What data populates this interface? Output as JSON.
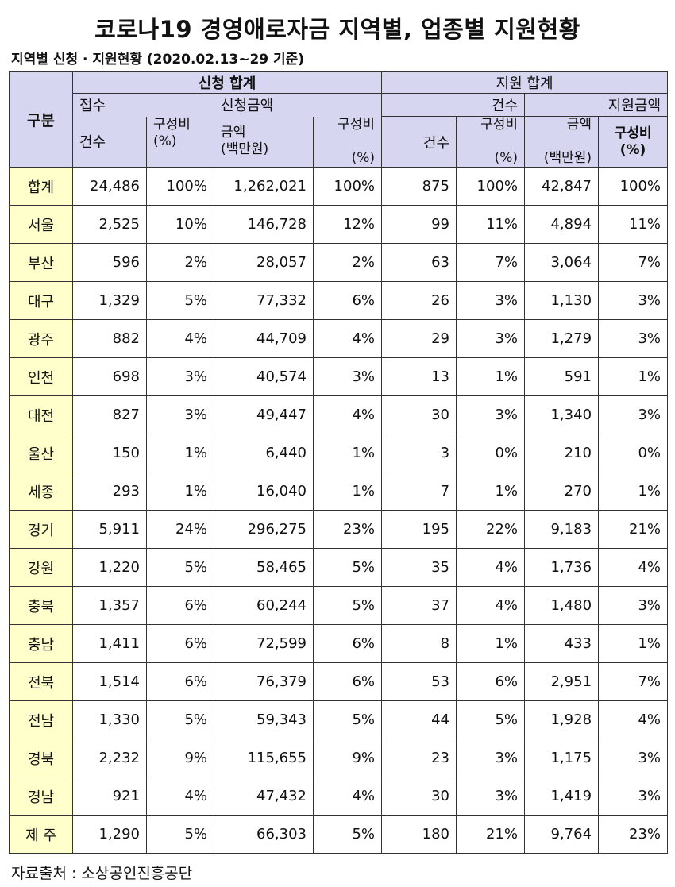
{
  "title": "코로나19 경영애로자금 지역별, 업종별 지원현황",
  "subtitle": "지역별 신청 · 지원현황 (2020.02.13~29 기준)",
  "table": {
    "gubun": "구분",
    "apply_total": "신청 합계",
    "support_total": "지원 합계",
    "reception": "접수",
    "apply_amount": "신청금액",
    "support_count_group": "건수",
    "support_amount_group": "지원금액",
    "col_count": "건수",
    "col_ratio_a": "구성비",
    "col_ratio_a_unit": "(%)",
    "col_amount_a": "금액",
    "col_amount_a_unit": "(백만원)",
    "col_ratio_b": "구성비",
    "col_ratio_b_unit": "(%)",
    "col_count_s": "건수",
    "col_ratio_c": "구성비",
    "col_ratio_c_unit": "(%)",
    "col_amount_s": "금액",
    "col_amount_s_unit": "(백만원)",
    "col_ratio_d": "구성비",
    "col_ratio_d_unit": "(%)",
    "rows": [
      {
        "region": "합계",
        "a_cnt": "24,486",
        "a_cnt_pct": "100%",
        "a_amt": "1,262,021",
        "a_amt_pct": "100%",
        "s_cnt": "875",
        "s_cnt_pct": "100%",
        "s_amt": "42,847",
        "s_amt_pct": "100%"
      },
      {
        "region": "서울",
        "a_cnt": "2,525",
        "a_cnt_pct": "10%",
        "a_amt": "146,728",
        "a_amt_pct": "12%",
        "s_cnt": "99",
        "s_cnt_pct": "11%",
        "s_amt": "4,894",
        "s_amt_pct": "11%"
      },
      {
        "region": "부산",
        "a_cnt": "596",
        "a_cnt_pct": "2%",
        "a_amt": "28,057",
        "a_amt_pct": "2%",
        "s_cnt": "63",
        "s_cnt_pct": "7%",
        "s_amt": "3,064",
        "s_amt_pct": "7%"
      },
      {
        "region": "대구",
        "a_cnt": "1,329",
        "a_cnt_pct": "5%",
        "a_amt": "77,332",
        "a_amt_pct": "6%",
        "s_cnt": "26",
        "s_cnt_pct": "3%",
        "s_amt": "1,130",
        "s_amt_pct": "3%"
      },
      {
        "region": "광주",
        "a_cnt": "882",
        "a_cnt_pct": "4%",
        "a_amt": "44,709",
        "a_amt_pct": "4%",
        "s_cnt": "29",
        "s_cnt_pct": "3%",
        "s_amt": "1,279",
        "s_amt_pct": "3%"
      },
      {
        "region": "인천",
        "a_cnt": "698",
        "a_cnt_pct": "3%",
        "a_amt": "40,574",
        "a_amt_pct": "3%",
        "s_cnt": "13",
        "s_cnt_pct": "1%",
        "s_amt": "591",
        "s_amt_pct": "1%"
      },
      {
        "region": "대전",
        "a_cnt": "827",
        "a_cnt_pct": "3%",
        "a_amt": "49,447",
        "a_amt_pct": "4%",
        "s_cnt": "30",
        "s_cnt_pct": "3%",
        "s_amt": "1,340",
        "s_amt_pct": "3%"
      },
      {
        "region": "울산",
        "a_cnt": "150",
        "a_cnt_pct": "1%",
        "a_amt": "6,440",
        "a_amt_pct": "1%",
        "s_cnt": "3",
        "s_cnt_pct": "0%",
        "s_amt": "210",
        "s_amt_pct": "0%"
      },
      {
        "region": "세종",
        "a_cnt": "293",
        "a_cnt_pct": "1%",
        "a_amt": "16,040",
        "a_amt_pct": "1%",
        "s_cnt": "7",
        "s_cnt_pct": "1%",
        "s_amt": "270",
        "s_amt_pct": "1%"
      },
      {
        "region": "경기",
        "a_cnt": "5,911",
        "a_cnt_pct": "24%",
        "a_amt": "296,275",
        "a_amt_pct": "23%",
        "s_cnt": "195",
        "s_cnt_pct": "22%",
        "s_amt": "9,183",
        "s_amt_pct": "21%"
      },
      {
        "region": "강원",
        "a_cnt": "1,220",
        "a_cnt_pct": "5%",
        "a_amt": "58,465",
        "a_amt_pct": "5%",
        "s_cnt": "35",
        "s_cnt_pct": "4%",
        "s_amt": "1,736",
        "s_amt_pct": "4%"
      },
      {
        "region": "충북",
        "a_cnt": "1,357",
        "a_cnt_pct": "6%",
        "a_amt": "60,244",
        "a_amt_pct": "5%",
        "s_cnt": "37",
        "s_cnt_pct": "4%",
        "s_amt": "1,480",
        "s_amt_pct": "3%"
      },
      {
        "region": "충남",
        "a_cnt": "1,411",
        "a_cnt_pct": "6%",
        "a_amt": "72,599",
        "a_amt_pct": "6%",
        "s_cnt": "8",
        "s_cnt_pct": "1%",
        "s_amt": "433",
        "s_amt_pct": "1%"
      },
      {
        "region": "전북",
        "a_cnt": "1,514",
        "a_cnt_pct": "6%",
        "a_amt": "76,379",
        "a_amt_pct": "6%",
        "s_cnt": "53",
        "s_cnt_pct": "6%",
        "s_amt": "2,951",
        "s_amt_pct": "7%"
      },
      {
        "region": "전남",
        "a_cnt": "1,330",
        "a_cnt_pct": "5%",
        "a_amt": "59,343",
        "a_amt_pct": "5%",
        "s_cnt": "44",
        "s_cnt_pct": "5%",
        "s_amt": "1,928",
        "s_amt_pct": "4%"
      },
      {
        "region": "경북",
        "a_cnt": "2,232",
        "a_cnt_pct": "9%",
        "a_amt": "115,655",
        "a_amt_pct": "9%",
        "s_cnt": "23",
        "s_cnt_pct": "3%",
        "s_amt": "1,175",
        "s_amt_pct": "3%"
      },
      {
        "region": "경남",
        "a_cnt": "921",
        "a_cnt_pct": "4%",
        "a_amt": "47,432",
        "a_amt_pct": "4%",
        "s_cnt": "30",
        "s_cnt_pct": "3%",
        "s_amt": "1,419",
        "s_amt_pct": "3%"
      },
      {
        "region": "제 주",
        "a_cnt": "1,290",
        "a_cnt_pct": "5%",
        "a_amt": "66,303",
        "a_amt_pct": "5%",
        "s_cnt": "180",
        "s_cnt_pct": "21%",
        "s_amt": "9,764",
        "s_amt_pct": "23%"
      }
    ]
  },
  "source": "자료출처 : 소상공인진흥공단",
  "colors": {
    "header_bg": "#d6d6f1",
    "row_header_bg": "#ffffcc",
    "border": "#333333"
  }
}
